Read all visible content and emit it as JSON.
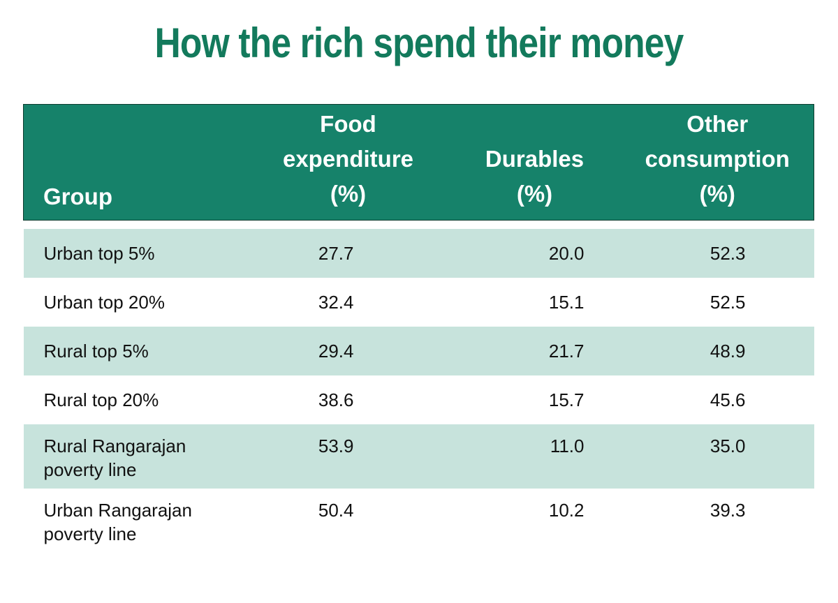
{
  "colors": {
    "title": "#137a5c",
    "header_bg": "#16826a",
    "header_text": "#ffffff",
    "row_shade": "#c7e3dc",
    "row_plain": "#ffffff",
    "text": "#111111"
  },
  "chart_data": {
    "type": "table",
    "title": "How the rich spend their money",
    "columns": [
      {
        "lines": [
          "Group"
        ]
      },
      {
        "lines": [
          "Food",
          "expenditure",
          "(%)"
        ]
      },
      {
        "lines": [
          "Durables",
          "(%)"
        ]
      },
      {
        "lines": [
          "Other",
          "consumption",
          "(%)"
        ]
      }
    ],
    "rows": [
      {
        "group": [
          "Urban top 5%"
        ],
        "values": [
          "27.7",
          "20.0",
          "52.3"
        ],
        "shaded": true
      },
      {
        "group": [
          "Urban top 20%"
        ],
        "values": [
          "32.4",
          "15.1",
          "52.5"
        ],
        "shaded": false
      },
      {
        "group": [
          "Rural top 5%"
        ],
        "values": [
          "29.4",
          "21.7",
          "48.9"
        ],
        "shaded": true
      },
      {
        "group": [
          "Rural top 20%"
        ],
        "values": [
          "38.6",
          "15.7",
          "45.6"
        ],
        "shaded": false
      },
      {
        "group": [
          "Rural Rangarajan",
          "poverty line"
        ],
        "values": [
          "53.9",
          "11.0",
          "35.0"
        ],
        "shaded": true
      },
      {
        "group": [
          "Urban Rangarajan",
          "poverty line"
        ],
        "values": [
          "50.4",
          "10.2",
          "39.3"
        ],
        "shaded": false
      }
    ]
  }
}
